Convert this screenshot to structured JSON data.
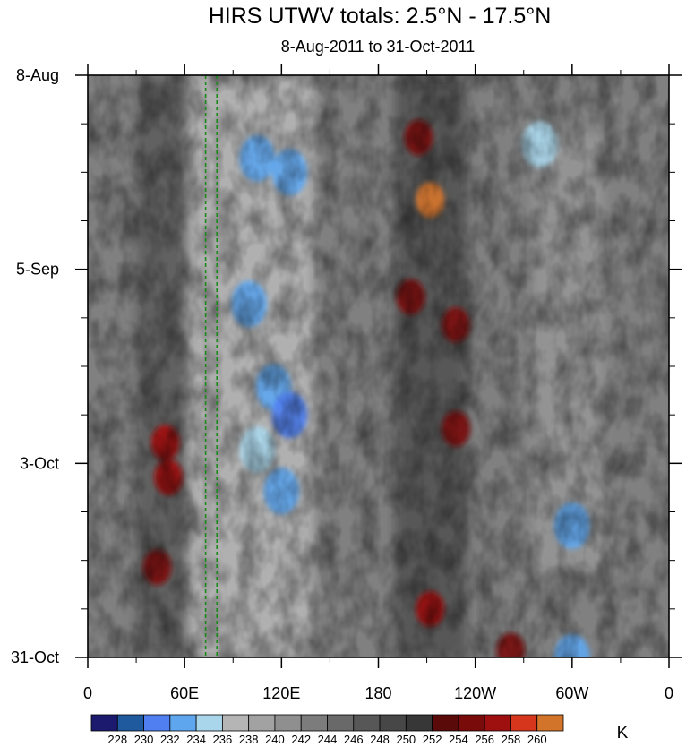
{
  "chart_data": {
    "type": "heatmap",
    "title": "HIRS UTWV totals: 2.5°N - 17.5°N",
    "subtitle": "8-Aug-2011 to 31-Oct-2011",
    "xlabel": "",
    "ylabel": "",
    "x_ticks": [
      "0",
      "60E",
      "120E",
      "180",
      "120W",
      "60W",
      "0"
    ],
    "x_values_deg_east": [
      0,
      60,
      120,
      180,
      240,
      300,
      360
    ],
    "xlim": [
      0,
      360
    ],
    "y_ticks": [
      "8-Aug",
      "5-Sep",
      "3-Oct",
      "31-Oct"
    ],
    "y_dates": [
      "2011-08-08",
      "2011-09-05",
      "2011-10-03",
      "2011-10-31"
    ],
    "ylim": [
      "2011-08-08",
      "2011-10-31"
    ],
    "reference_lines_deg_east": [
      73,
      80
    ],
    "colorbar": {
      "unit": "K",
      "levels": [
        228,
        230,
        232,
        234,
        236,
        238,
        240,
        242,
        244,
        246,
        248,
        250,
        252,
        254,
        256,
        258,
        260
      ],
      "colors": [
        "#1b1a6e",
        "#1f5a9e",
        "#4f7ff0",
        "#5ea6ee",
        "#a9d6ea",
        "#b5b5b5",
        "#a2a2a2",
        "#8f8f8f",
        "#7c7c7c",
        "#696969",
        "#575757",
        "#474747",
        "#373737",
        "#5a0a08",
        "#7a0b0b",
        "#9e0f10",
        "#d6361b",
        "#d2742a"
      ]
    },
    "features": [
      {
        "lon": 50,
        "date": "2011-10-05",
        "value": 256,
        "kind": "warm"
      },
      {
        "lon": 48,
        "date": "2011-09-30",
        "value": 256,
        "kind": "warm"
      },
      {
        "lon": 43,
        "date": "2011-10-18",
        "value": 254,
        "kind": "warm"
      },
      {
        "lon": 212,
        "date": "2011-08-26",
        "value": 260,
        "kind": "warm"
      },
      {
        "lon": 205,
        "date": "2011-08-17",
        "value": 254,
        "kind": "warm"
      },
      {
        "lon": 212,
        "date": "2011-10-24",
        "value": 256,
        "kind": "warm"
      },
      {
        "lon": 228,
        "date": "2011-09-13",
        "value": 254,
        "kind": "warm"
      },
      {
        "lon": 228,
        "date": "2011-09-28",
        "value": 254,
        "kind": "warm"
      },
      {
        "lon": 262,
        "date": "2011-10-30",
        "value": 254,
        "kind": "warm"
      },
      {
        "lon": 200,
        "date": "2011-09-09",
        "value": 254,
        "kind": "warm"
      },
      {
        "lon": 105,
        "date": "2011-08-20",
        "value": 232,
        "kind": "cold"
      },
      {
        "lon": 125,
        "date": "2011-08-22",
        "value": 232,
        "kind": "cold"
      },
      {
        "lon": 100,
        "date": "2011-09-10",
        "value": 232,
        "kind": "cold"
      },
      {
        "lon": 115,
        "date": "2011-09-22",
        "value": 232,
        "kind": "cold"
      },
      {
        "lon": 125,
        "date": "2011-09-26",
        "value": 230,
        "kind": "cold"
      },
      {
        "lon": 105,
        "date": "2011-10-01",
        "value": 234,
        "kind": "cold"
      },
      {
        "lon": 120,
        "date": "2011-10-07",
        "value": 232,
        "kind": "cold"
      },
      {
        "lon": 300,
        "date": "2011-10-31",
        "value": 232,
        "kind": "cold"
      },
      {
        "lon": 280,
        "date": "2011-08-18",
        "value": 234,
        "kind": "cold"
      },
      {
        "lon": 300,
        "date": "2011-10-12",
        "value": 232,
        "kind": "cold"
      }
    ],
    "grid": false,
    "legend": "colorbar-bottom"
  }
}
